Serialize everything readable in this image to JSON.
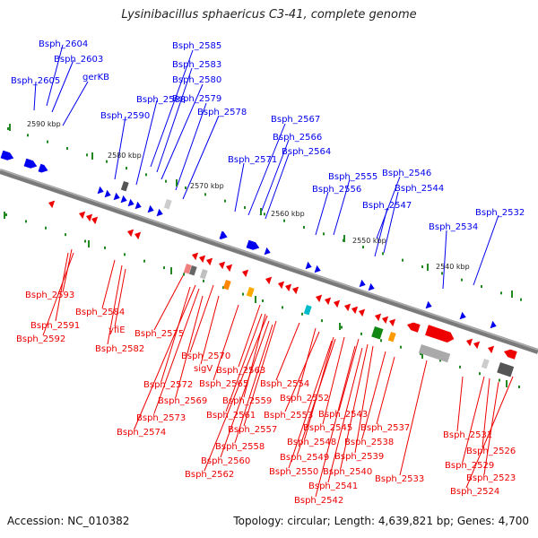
{
  "title": "Lysinibacillus sphaericus C3-41, complete genome",
  "footer": {
    "accession": "Accession: NC_010382",
    "summary": "Topology: circular; Length: 4,639,821 bp; Genes: 4,700"
  },
  "colors": {
    "plus_strand": "#0000ee",
    "minus_strand": "#ee0000",
    "genome_line": "#808080",
    "tick_green": "#228822"
  },
  "scale_ticks": [
    "2590 kbp",
    "2580 kbp",
    "2570 kbp",
    "2560 kbp",
    "2550 kbp",
    "2540 kbp"
  ],
  "plus_labels": [
    "Bsph_2604",
    "Bsph_2603",
    "Bsph_2605",
    "gerKB",
    "Bsph_2585",
    "Bsph_2583",
    "Bsph_2580",
    "Bsph_2588",
    "Bsph_2579",
    "Bsph_2590",
    "Bsph_2578",
    "Bsph_2567",
    "Bsph_2566",
    "Bsph_2564",
    "Bsph_2571",
    "Bsph_2555",
    "Bsph_2546",
    "Bsph_2556",
    "Bsph_2544",
    "Bsph_2547",
    "Bsph_2532",
    "Bsph_2534"
  ],
  "minus_labels": [
    "Bsph_2593",
    "Bsph_2591",
    "Bsph_2592",
    "Bsph_2584",
    "yfiE",
    "Bsph_2582",
    "Bsph_2575",
    "Bsph_2570",
    "sigV",
    "Bsph_2563",
    "Bsph_2565",
    "Bsph_2572",
    "Bsph_2569",
    "Bsph_2573",
    "Bsph_2574",
    "Bsph_2559",
    "Bsph_2554",
    "Bsph_2552",
    "Bsph_2561",
    "Bsph_2553",
    "Bsph_2543",
    "Bsph_2557",
    "Bsph_2545",
    "Bsph_2537",
    "Bsph_2548",
    "Bsph_2538",
    "Bsph_2558",
    "Bsph_2549",
    "Bsph_2539",
    "Bsph_2560",
    "Bsph_2550",
    "Bsph_2540",
    "Bsph_2562",
    "Bsph_2541",
    "Bsph_2533",
    "Bsph_2542",
    "Bsph_2531",
    "Bsph_2526",
    "Bsph_2529",
    "Bsph_2523",
    "Bsph_2524"
  ]
}
